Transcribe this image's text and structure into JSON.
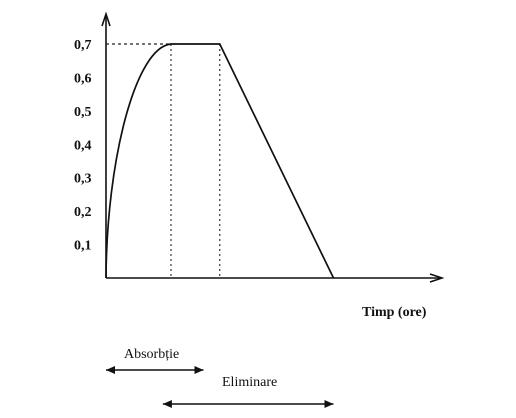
{
  "chart_data": {
    "type": "line",
    "title": "",
    "xlabel": "Timp  (ore)",
    "ylabel": "",
    "ylim": [
      0,
      0.72
    ],
    "y_ticks": [
      "0,1",
      "0,2",
      "0,3",
      "0,4",
      "0,5",
      "0,6",
      "0,7"
    ],
    "y_tick_values": [
      0.1,
      0.2,
      0.3,
      0.4,
      0.5,
      0.6,
      0.7
    ],
    "grid": false,
    "legend": "none",
    "series": [
      {
        "x": [
          0,
          0.1,
          0.25,
          0.5,
          0.75,
          1.0,
          1.25,
          1.5,
          1.75,
          2.0,
          2.5,
          3.5,
          7.0
        ],
        "y": [
          0.0,
          0.18,
          0.3,
          0.43,
          0.52,
          0.58,
          0.63,
          0.66,
          0.685,
          0.7,
          0.7,
          0.7,
          0.0
        ]
      }
    ],
    "reference_lines": {
      "horizontal_dotted_y": 0.7,
      "vertical_dotted_x": [
        2.0,
        3.5
      ]
    },
    "annotations": [
      {
        "text": "Absorbție",
        "range_x": [
          0,
          3.0
        ]
      },
      {
        "text": "Eliminare",
        "range_x": [
          1.75,
          7.0
        ]
      }
    ]
  }
}
